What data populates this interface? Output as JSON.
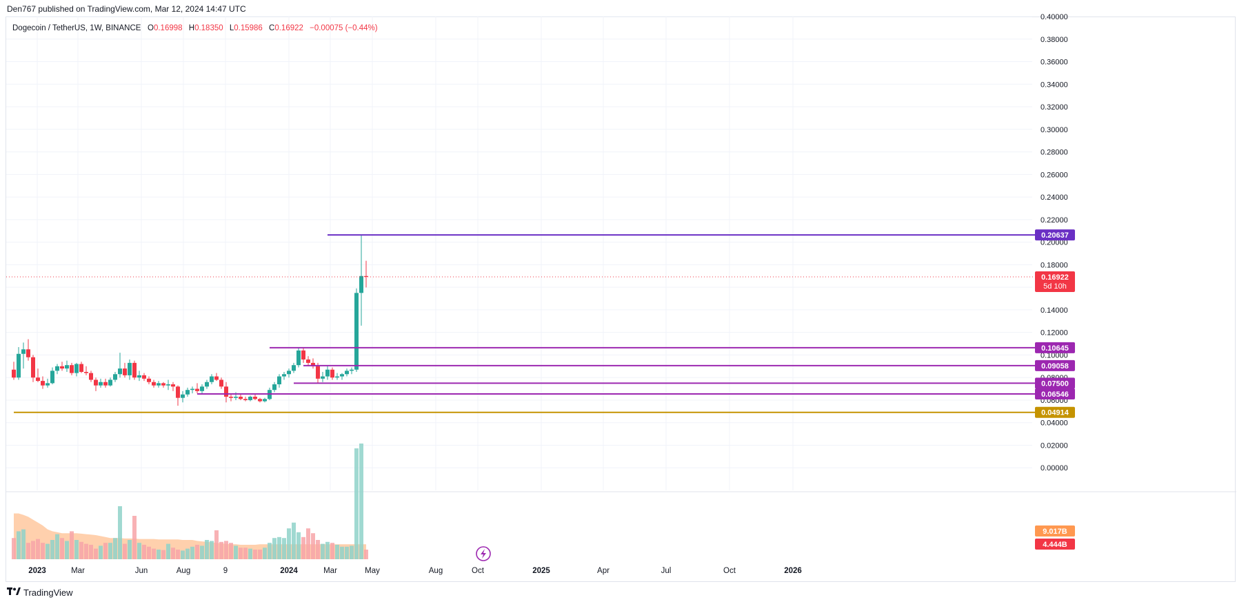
{
  "header": {
    "published": "Den767 published on TradingView.com, Mar 12, 2024 14:47 UTC"
  },
  "legend": {
    "symbol": "Dogecoin / TetherUS, 1W, BINANCE",
    "o_label": "O",
    "o_value": "0.16998",
    "h_label": "H",
    "h_value": "0.18350",
    "l_label": "L",
    "l_value": "0.15986",
    "c_label": "C",
    "c_value": "0.16922",
    "change": "−0.00075 (−0.44%)"
  },
  "footer": {
    "brand": "TradingView",
    "logo_icon": "tradingview-logo-icon"
  },
  "colors": {
    "up": "#26a69a",
    "down": "#f23645",
    "level": "#9c27b0",
    "support": "#c59300",
    "volume_up": "#8fd2c9",
    "volume_down": "#f7a5a8",
    "volume_ma": "#ffcba4"
  },
  "chart_data": {
    "type": "candlestick",
    "title": "Dogecoin / TetherUS, 1W, BINANCE",
    "y_ticks": [
      "0.40000",
      "0.38000",
      "0.36000",
      "0.34000",
      "0.32000",
      "0.30000",
      "0.28000",
      "0.26000",
      "0.24000",
      "0.22000",
      "0.20000",
      "0.18000",
      "0.16000",
      "0.14000",
      "0.12000",
      "0.10000",
      "0.08000",
      "0.06000",
      "0.04000",
      "0.02000",
      "0.00000"
    ],
    "ylim": [
      -0.02,
      0.4
    ],
    "x_ticks": [
      "2023",
      "Mar",
      "Jun",
      "Aug",
      "9",
      "2024",
      "Mar",
      "May",
      "Aug",
      "Oct",
      "2025",
      "Apr",
      "Jul",
      "Oct",
      "2026"
    ],
    "x_tick_bold": [
      "2023",
      "2024",
      "2025",
      "2026"
    ],
    "current_price": {
      "label": "0.16922",
      "value": 0.16922,
      "countdown": "5d 10h"
    },
    "levels": [
      {
        "label": "0.20637",
        "value": 0.20637,
        "color": "#6a2fc4",
        "start": "2024-02-26"
      },
      {
        "label": "0.10645",
        "value": 0.10645,
        "color": "#9c27b0",
        "start": "2023-12-04"
      },
      {
        "label": "0.09058",
        "value": 0.09058,
        "color": "#9c27b0",
        "start": "2024-01-22"
      },
      {
        "label": "0.07500",
        "value": 0.075,
        "color": "#9c27b0",
        "start": "2024-01-08"
      },
      {
        "label": "0.06546",
        "value": 0.06546,
        "color": "#9c27b0",
        "start": "2023-08-21"
      },
      {
        "label": "0.04914",
        "value": 0.04914,
        "color": "#c59300",
        "start": "2022-11-28"
      }
    ],
    "volume_labels": [
      {
        "label": "9.017B",
        "color": "#ff9850"
      },
      {
        "label": "4.444B",
        "color": "#f23645"
      }
    ],
    "candles": [
      {
        "o": 0.087,
        "h": 0.094,
        "l": 0.078,
        "c": 0.08
      },
      {
        "o": 0.08,
        "h": 0.107,
        "l": 0.078,
        "c": 0.101
      },
      {
        "o": 0.101,
        "h": 0.111,
        "l": 0.088,
        "c": 0.105
      },
      {
        "o": 0.105,
        "h": 0.114,
        "l": 0.095,
        "c": 0.098
      },
      {
        "o": 0.098,
        "h": 0.1,
        "l": 0.076,
        "c": 0.08
      },
      {
        "o": 0.08,
        "h": 0.088,
        "l": 0.076,
        "c": 0.077
      },
      {
        "o": 0.077,
        "h": 0.081,
        "l": 0.07,
        "c": 0.073
      },
      {
        "o": 0.073,
        "h": 0.079,
        "l": 0.071,
        "c": 0.075
      },
      {
        "o": 0.075,
        "h": 0.089,
        "l": 0.074,
        "c": 0.086
      },
      {
        "o": 0.086,
        "h": 0.092,
        "l": 0.083,
        "c": 0.09
      },
      {
        "o": 0.09,
        "h": 0.094,
        "l": 0.086,
        "c": 0.088
      },
      {
        "o": 0.088,
        "h": 0.095,
        "l": 0.085,
        "c": 0.091
      },
      {
        "o": 0.091,
        "h": 0.093,
        "l": 0.082,
        "c": 0.084
      },
      {
        "o": 0.084,
        "h": 0.093,
        "l": 0.081,
        "c": 0.092
      },
      {
        "o": 0.092,
        "h": 0.094,
        "l": 0.084,
        "c": 0.085
      },
      {
        "o": 0.085,
        "h": 0.09,
        "l": 0.082,
        "c": 0.084
      },
      {
        "o": 0.084,
        "h": 0.086,
        "l": 0.076,
        "c": 0.078
      },
      {
        "o": 0.078,
        "h": 0.08,
        "l": 0.068,
        "c": 0.073
      },
      {
        "o": 0.073,
        "h": 0.079,
        "l": 0.071,
        "c": 0.076
      },
      {
        "o": 0.076,
        "h": 0.079,
        "l": 0.071,
        "c": 0.073
      },
      {
        "o": 0.073,
        "h": 0.08,
        "l": 0.072,
        "c": 0.078
      },
      {
        "o": 0.078,
        "h": 0.085,
        "l": 0.076,
        "c": 0.083
      },
      {
        "o": 0.083,
        "h": 0.102,
        "l": 0.08,
        "c": 0.088
      },
      {
        "o": 0.088,
        "h": 0.093,
        "l": 0.08,
        "c": 0.082
      },
      {
        "o": 0.082,
        "h": 0.096,
        "l": 0.078,
        "c": 0.093
      },
      {
        "o": 0.093,
        "h": 0.095,
        "l": 0.078,
        "c": 0.08
      },
      {
        "o": 0.08,
        "h": 0.086,
        "l": 0.077,
        "c": 0.082
      },
      {
        "o": 0.082,
        "h": 0.084,
        "l": 0.077,
        "c": 0.079
      },
      {
        "o": 0.079,
        "h": 0.081,
        "l": 0.074,
        "c": 0.076
      },
      {
        "o": 0.076,
        "h": 0.078,
        "l": 0.071,
        "c": 0.073
      },
      {
        "o": 0.073,
        "h": 0.077,
        "l": 0.071,
        "c": 0.075
      },
      {
        "o": 0.075,
        "h": 0.076,
        "l": 0.071,
        "c": 0.073
      },
      {
        "o": 0.073,
        "h": 0.078,
        "l": 0.069,
        "c": 0.074
      },
      {
        "o": 0.074,
        "h": 0.076,
        "l": 0.068,
        "c": 0.072
      },
      {
        "o": 0.072,
        "h": 0.073,
        "l": 0.055,
        "c": 0.062
      },
      {
        "o": 0.062,
        "h": 0.068,
        "l": 0.058,
        "c": 0.065
      },
      {
        "o": 0.065,
        "h": 0.071,
        "l": 0.063,
        "c": 0.069
      },
      {
        "o": 0.069,
        "h": 0.072,
        "l": 0.066,
        "c": 0.07
      },
      {
        "o": 0.07,
        "h": 0.075,
        "l": 0.066,
        "c": 0.068
      },
      {
        "o": 0.068,
        "h": 0.074,
        "l": 0.066,
        "c": 0.072
      },
      {
        "o": 0.072,
        "h": 0.078,
        "l": 0.07,
        "c": 0.076
      },
      {
        "o": 0.076,
        "h": 0.083,
        "l": 0.074,
        "c": 0.081
      },
      {
        "o": 0.081,
        "h": 0.084,
        "l": 0.077,
        "c": 0.078
      },
      {
        "o": 0.078,
        "h": 0.08,
        "l": 0.07,
        "c": 0.072
      },
      {
        "o": 0.072,
        "h": 0.076,
        "l": 0.058,
        "c": 0.063
      },
      {
        "o": 0.063,
        "h": 0.066,
        "l": 0.059,
        "c": 0.062
      },
      {
        "o": 0.062,
        "h": 0.067,
        "l": 0.06,
        "c": 0.063
      },
      {
        "o": 0.063,
        "h": 0.065,
        "l": 0.06,
        "c": 0.061
      },
      {
        "o": 0.061,
        "h": 0.063,
        "l": 0.059,
        "c": 0.06
      },
      {
        "o": 0.06,
        "h": 0.064,
        "l": 0.059,
        "c": 0.063
      },
      {
        "o": 0.063,
        "h": 0.065,
        "l": 0.06,
        "c": 0.061
      },
      {
        "o": 0.061,
        "h": 0.062,
        "l": 0.058,
        "c": 0.059
      },
      {
        "o": 0.059,
        "h": 0.062,
        "l": 0.058,
        "c": 0.061
      },
      {
        "o": 0.061,
        "h": 0.071,
        "l": 0.06,
        "c": 0.069
      },
      {
        "o": 0.069,
        "h": 0.076,
        "l": 0.067,
        "c": 0.074
      },
      {
        "o": 0.074,
        "h": 0.083,
        "l": 0.071,
        "c": 0.081
      },
      {
        "o": 0.081,
        "h": 0.085,
        "l": 0.078,
        "c": 0.083
      },
      {
        "o": 0.083,
        "h": 0.088,
        "l": 0.08,
        "c": 0.086
      },
      {
        "o": 0.086,
        "h": 0.093,
        "l": 0.084,
        "c": 0.091
      },
      {
        "o": 0.091,
        "h": 0.107,
        "l": 0.089,
        "c": 0.104
      },
      {
        "o": 0.104,
        "h": 0.106,
        "l": 0.093,
        "c": 0.096
      },
      {
        "o": 0.096,
        "h": 0.099,
        "l": 0.09,
        "c": 0.093
      },
      {
        "o": 0.093,
        "h": 0.097,
        "l": 0.088,
        "c": 0.09
      },
      {
        "o": 0.09,
        "h": 0.093,
        "l": 0.075,
        "c": 0.079
      },
      {
        "o": 0.079,
        "h": 0.085,
        "l": 0.076,
        "c": 0.081
      },
      {
        "o": 0.081,
        "h": 0.091,
        "l": 0.078,
        "c": 0.087
      },
      {
        "o": 0.087,
        "h": 0.089,
        "l": 0.078,
        "c": 0.08
      },
      {
        "o": 0.08,
        "h": 0.084,
        "l": 0.078,
        "c": 0.081
      },
      {
        "o": 0.081,
        "h": 0.084,
        "l": 0.078,
        "c": 0.083
      },
      {
        "o": 0.083,
        "h": 0.088,
        "l": 0.081,
        "c": 0.086
      },
      {
        "o": 0.086,
        "h": 0.089,
        "l": 0.083,
        "c": 0.087
      },
      {
        "o": 0.087,
        "h": 0.159,
        "l": 0.085,
        "c": 0.155
      },
      {
        "o": 0.155,
        "h": 0.206,
        "l": 0.126,
        "c": 0.17
      },
      {
        "o": 0.16998,
        "h": 0.1835,
        "l": 0.15986,
        "c": 0.16922
      }
    ],
    "volume": [
      0.44,
      0.58,
      0.62,
      0.34,
      0.38,
      0.42,
      0.34,
      0.32,
      0.4,
      0.52,
      0.44,
      0.38,
      0.58,
      0.4,
      0.36,
      0.32,
      0.3,
      0.22,
      0.28,
      0.34,
      0.34,
      0.44,
      1.1,
      0.32,
      0.4,
      0.9,
      0.34,
      0.3,
      0.26,
      0.22,
      0.2,
      0.19,
      0.32,
      0.24,
      0.2,
      0.18,
      0.22,
      0.26,
      0.3,
      0.28,
      0.4,
      0.38,
      0.6,
      0.36,
      0.38,
      0.34,
      0.28,
      0.24,
      0.24,
      0.22,
      0.2,
      0.2,
      0.24,
      0.34,
      0.44,
      0.46,
      0.44,
      0.64,
      0.76,
      0.56,
      0.46,
      0.64,
      0.54,
      0.4,
      0.32,
      0.36,
      0.34,
      0.3,
      0.26,
      0.26,
      0.28,
      2.3,
      2.4,
      0.2
    ],
    "volume_ma": [
      0.95,
      0.95,
      0.92,
      0.88,
      0.82,
      0.76,
      0.7,
      0.62,
      0.58,
      0.56,
      0.54,
      0.54,
      0.54,
      0.54,
      0.53,
      0.52,
      0.51,
      0.5,
      0.48,
      0.46,
      0.44,
      0.44,
      0.44,
      0.43,
      0.43,
      0.43,
      0.42,
      0.42,
      0.42,
      0.42,
      0.41,
      0.41,
      0.41,
      0.41,
      0.41,
      0.4,
      0.4,
      0.4,
      0.38,
      0.37,
      0.36,
      0.35,
      0.34,
      0.33,
      0.32,
      0.31,
      0.31,
      0.3,
      0.3,
      0.3,
      0.3,
      0.31,
      0.31,
      0.31,
      0.31,
      0.31,
      0.31,
      0.31,
      0.31,
      0.31,
      0.31,
      0.31,
      0.31,
      0.31,
      0.31,
      0.31,
      0.31,
      0.31,
      0.31,
      0.31,
      0.31,
      0.31,
      0.31,
      0.31
    ]
  }
}
